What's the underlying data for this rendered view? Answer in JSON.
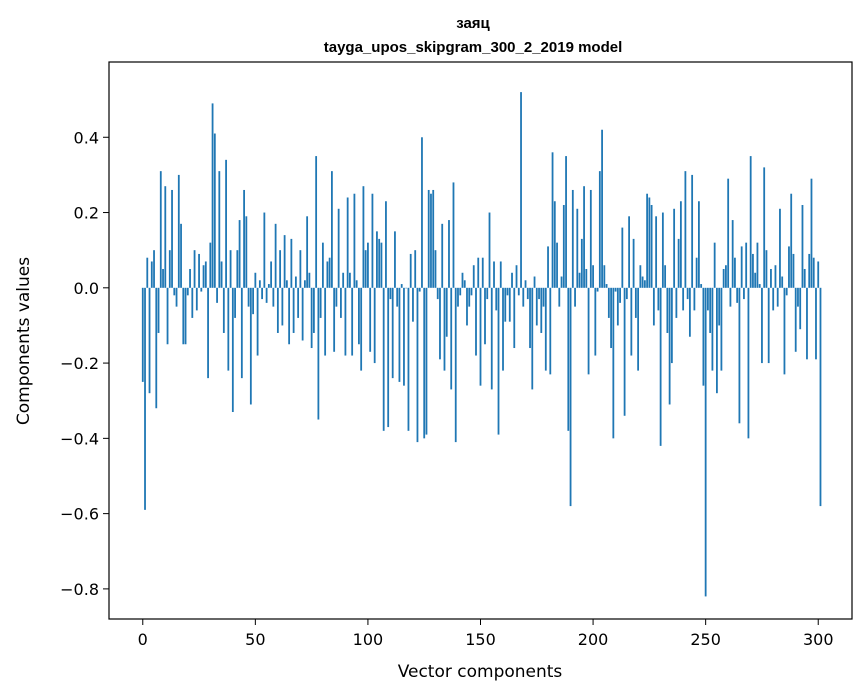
{
  "chart_data": {
    "type": "bar",
    "title": "заяц",
    "subtitle": "tayga_upos_skipgram_300_2_2019 model",
    "xlabel": "Vector components",
    "ylabel": "Components values",
    "xlim": [
      -15,
      315
    ],
    "ylim": [
      -0.88,
      0.6
    ],
    "xticks": [
      0,
      50,
      100,
      150,
      200,
      250,
      300
    ],
    "xtick_labels": [
      "0",
      "50",
      "100",
      "150",
      "200",
      "250",
      "300"
    ],
    "yticks": [
      -0.8,
      -0.6,
      -0.4,
      -0.2,
      0.0,
      0.2,
      0.4
    ],
    "ytick_labels": [
      "−0.8",
      "−0.6",
      "−0.4",
      "−0.2",
      "0.0",
      "0.2",
      "0.4"
    ],
    "grid": false,
    "bar_color": "#1f77b4",
    "x_start": 0,
    "values": [
      -0.25,
      -0.59,
      0.08,
      -0.28,
      0.07,
      0.1,
      -0.32,
      -0.12,
      0.31,
      0.05,
      0.27,
      -0.15,
      0.1,
      0.26,
      -0.02,
      -0.05,
      0.3,
      0.17,
      -0.15,
      -0.15,
      -0.02,
      0.05,
      -0.08,
      0.1,
      -0.06,
      0.09,
      -0.01,
      0.06,
      0.07,
      -0.24,
      0.12,
      0.49,
      0.41,
      -0.04,
      0.31,
      0.07,
      -0.12,
      0.34,
      -0.22,
      0.1,
      -0.33,
      -0.08,
      0.1,
      0.18,
      -0.24,
      0.26,
      0.19,
      -0.05,
      -0.31,
      -0.07,
      0.04,
      -0.18,
      0.02,
      -0.03,
      0.2,
      -0.04,
      0.01,
      0.07,
      -0.05,
      0.17,
      -0.12,
      0.1,
      -0.1,
      0.14,
      0.02,
      -0.15,
      0.13,
      -0.12,
      0.03,
      -0.08,
      0.1,
      -0.14,
      0.02,
      0.19,
      0.04,
      -0.16,
      -0.12,
      0.35,
      -0.35,
      -0.08,
      0.12,
      -0.18,
      0.07,
      0.08,
      0.31,
      -0.17,
      -0.05,
      0.21,
      -0.08,
      0.04,
      -0.18,
      0.24,
      0.04,
      -0.18,
      0.25,
      0.02,
      -0.15,
      -0.22,
      0.27,
      0.1,
      0.12,
      -0.17,
      0.25,
      -0.2,
      0.15,
      0.13,
      0.12,
      -0.38,
      0.23,
      -0.37,
      -0.03,
      -0.24,
      0.15,
      -0.05,
      -0.25,
      0.01,
      -0.26,
      0.0,
      -0.38,
      0.09,
      -0.09,
      0.1,
      -0.41,
      -0.01,
      0.4,
      -0.4,
      -0.39,
      0.26,
      0.25,
      0.26,
      0.1,
      -0.03,
      -0.19,
      0.17,
      -0.22,
      -0.13,
      0.18,
      -0.27,
      0.28,
      -0.41,
      -0.05,
      -0.02,
      0.04,
      0.02,
      -0.1,
      -0.05,
      -0.02,
      0.06,
      -0.18,
      0.08,
      -0.26,
      0.08,
      -0.15,
      -0.03,
      0.2,
      -0.27,
      0.07,
      -0.06,
      -0.39,
      0.07,
      -0.22,
      -0.09,
      -0.02,
      -0.09,
      0.04,
      -0.16,
      0.06,
      -0.02,
      0.52,
      -0.05,
      0.02,
      -0.03,
      -0.16,
      -0.27,
      0.03,
      -0.1,
      -0.03,
      -0.12,
      -0.05,
      -0.22,
      0.11,
      -0.23,
      0.36,
      0.23,
      0.12,
      -0.05,
      0.03,
      0.22,
      0.35,
      -0.38,
      -0.58,
      0.26,
      -0.05,
      0.21,
      0.04,
      0.13,
      0.27,
      0.05,
      -0.23,
      0.26,
      0.06,
      -0.18,
      -0.01,
      0.31,
      0.42,
      0.06,
      0.01,
      -0.08,
      -0.16,
      -0.4,
      -0.01,
      -0.1,
      -0.04,
      0.16,
      -0.34,
      -0.03,
      0.19,
      -0.18,
      0.13,
      -0.08,
      -0.22,
      0.06,
      0.03,
      0.02,
      0.25,
      0.24,
      0.22,
      -0.1,
      0.19,
      -0.06,
      -0.42,
      0.2,
      0.06,
      -0.12,
      -0.31,
      -0.2,
      0.21,
      -0.08,
      0.13,
      0.23,
      -0.06,
      0.31,
      -0.03,
      -0.13,
      0.3,
      -0.06,
      0.08,
      0.23,
      0.01,
      -0.26,
      -0.82,
      -0.06,
      -0.12,
      -0.22,
      0.12,
      -0.28,
      -0.1,
      -0.22,
      0.05,
      0.06,
      0.29,
      -0.05,
      0.18,
      0.08,
      -0.04,
      -0.36,
      0.11,
      -0.03,
      0.12,
      -0.4,
      0.35,
      0.09,
      0.04,
      0.12,
      0.01,
      -0.2,
      0.32,
      0.1,
      -0.2,
      0.05,
      -0.06,
      0.06,
      -0.05,
      0.21,
      0.03,
      -0.23,
      -0.02,
      0.11,
      0.25,
      0.09,
      -0.17,
      -0.05,
      -0.11,
      0.22,
      0.05,
      -0.19,
      0.09,
      0.29,
      0.08,
      -0.19,
      0.07,
      -0.58
    ]
  }
}
